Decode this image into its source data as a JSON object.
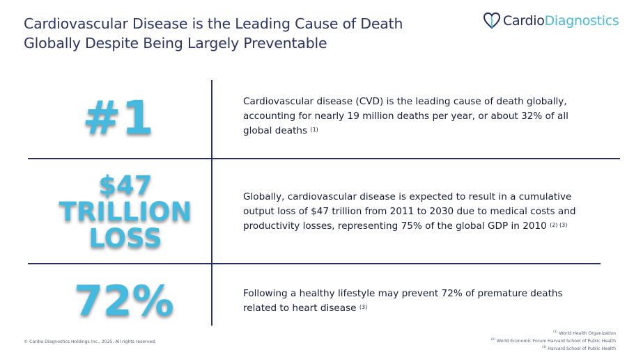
{
  "title": {
    "line1": "Cardiovascular Disease is the Leading Cause of Death",
    "line2": "Globally Despite Being Largely Preventable"
  },
  "logo": {
    "icon": "heart-logo-icon",
    "text_part1": "Cardio",
    "text_part2": "Diagnostics",
    "brand_color": "#49b8dd"
  },
  "rows": [
    {
      "stat": "#1",
      "description": "Cardiovascular disease (CVD) is the leading cause of death globally, accounting for nearly 19 million deaths per year, or about 32% of all global deaths",
      "refs": "(1)"
    },
    {
      "stat_lines": [
        "$47",
        "TRILLION",
        "LOSS"
      ],
      "description": "Globally, cardiovascular disease is expected to result in a cumulative output loss of $47 trillion from 2011 to 2030 due to medical costs and productivity losses, representing 75% of the global GDP in 2010",
      "refs": "(2) (3)"
    },
    {
      "stat": "72%",
      "description": "Following a healthy lifestyle may prevent 72% of premature deaths related to heart disease",
      "refs": "(3)"
    }
  ],
  "footer": {
    "copyright": "© Cardio Diagnostics Holdings Inc., 2025. All rights reserved.",
    "sources": [
      {
        "num": "(1)",
        "text": "World Health Organization"
      },
      {
        "num": "(2)",
        "text": "World Economic Forum Harvard School of Public Health"
      },
      {
        "num": "(3)",
        "text": "Harvard School of Public Health"
      }
    ]
  },
  "colors": {
    "stat": "#45b9de",
    "title": "#2a3565",
    "divider": "#27305e"
  }
}
